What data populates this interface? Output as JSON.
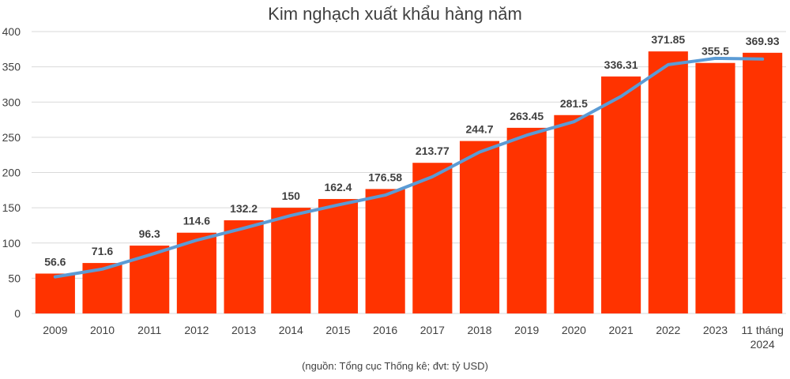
{
  "chart_data": {
    "type": "bar",
    "title": "Kim nghạch xuất khẩu hàng năm",
    "categories": [
      "2009",
      "2010",
      "2011",
      "2012",
      "2013",
      "2014",
      "2015",
      "2016",
      "2017",
      "2018",
      "2019",
      "2020",
      "2021",
      "2022",
      "2023",
      "11 tháng 2024"
    ],
    "values": [
      56.6,
      71.6,
      96.3,
      114.6,
      132.2,
      150,
      162.4,
      176.58,
      213.77,
      244.7,
      263.45,
      281.5,
      336.31,
      371.85,
      355.5,
      369.93
    ],
    "value_labels": [
      "56.6",
      "71.6",
      "96.3",
      "114.6",
      "132.2",
      "150",
      "162.4",
      "176.58",
      "213.77",
      "244.7",
      "263.45",
      "281.5",
      "336.31",
      "371.85",
      "355.5",
      "369.93"
    ],
    "trend_values": [
      52,
      63,
      83,
      104,
      121,
      139,
      154,
      168,
      194,
      229,
      253,
      272,
      308,
      353,
      362,
      361
    ],
    "y_ticks": [
      "0",
      "50",
      "100",
      "150",
      "200",
      "250",
      "300",
      "350",
      "400"
    ],
    "ylim": [
      0,
      400
    ],
    "xlabel": "",
    "ylabel": "",
    "grid": true,
    "legend": "none",
    "source_note": "(nguồn: Tổng cục Thống kê; đvt: tỷ USD)",
    "colors": {
      "bar": "#ff3300",
      "trend": "#5b9bd5",
      "text": "#404040",
      "grid": "#d9d9d9"
    }
  }
}
